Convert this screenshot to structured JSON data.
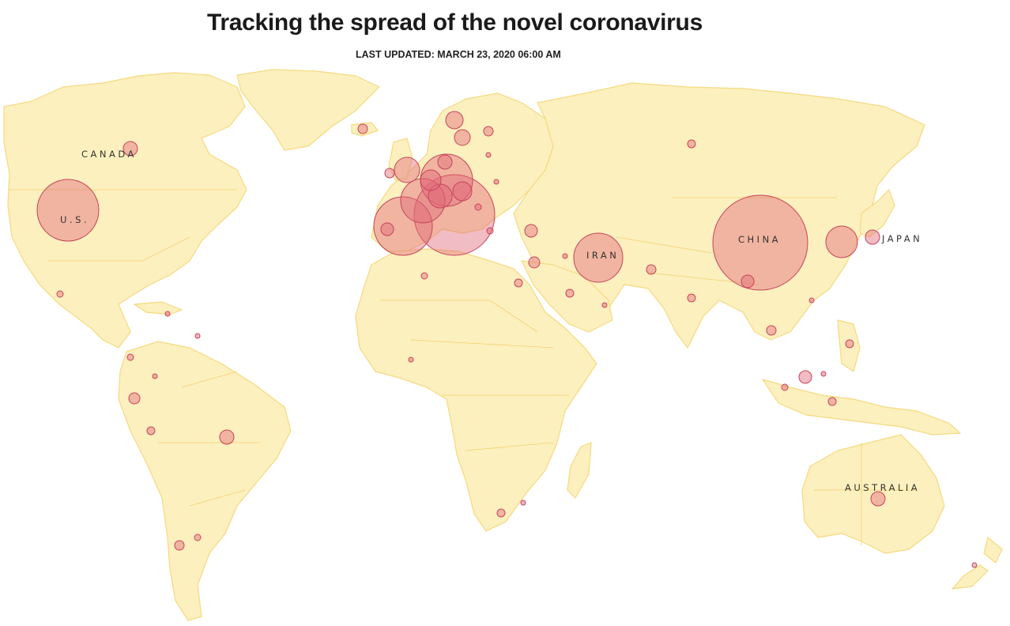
{
  "header": {
    "title": "Tracking the spread of the novel coronavirus",
    "last_updated": "LAST UPDATED: MARCH 23, 2020 06:00 AM"
  },
  "colors": {
    "land": "#fdf0bf",
    "land_border": "#f5d97e",
    "bubble_fill": "#e16a7a",
    "bubble_stroke": "#c7435a",
    "water": "#ffffff"
  },
  "map": {
    "country_labels": [
      "CANADA",
      "U.S.",
      "IRAN",
      "CHINA",
      "JAPAN",
      "AUSTRALIA"
    ]
  }
}
